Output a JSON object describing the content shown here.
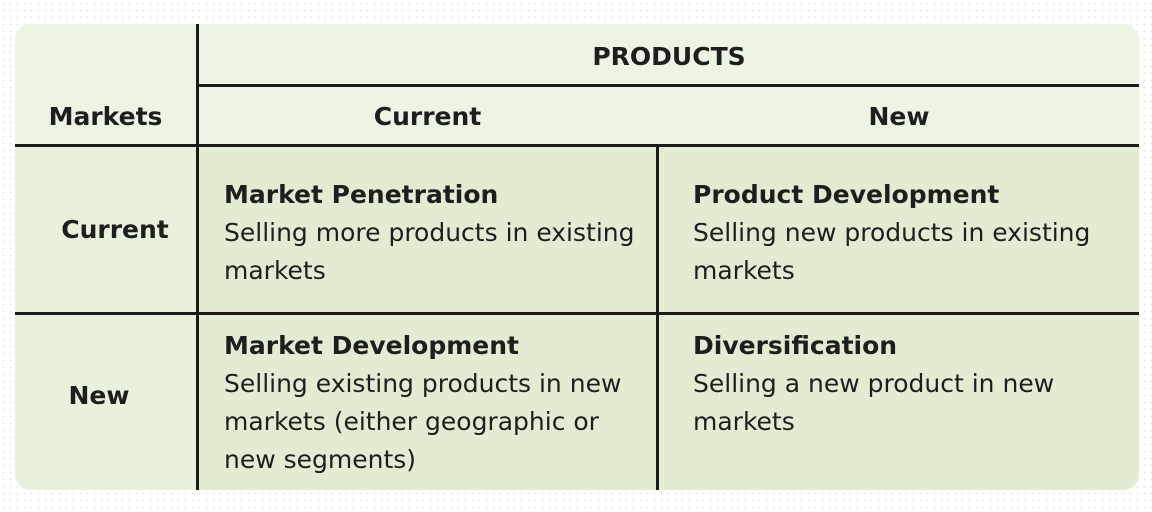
{
  "header": {
    "products_label": "PRODUCTS",
    "markets_label": "Markets",
    "columns": [
      "Current",
      "New"
    ]
  },
  "rows": [
    {
      "label": "Current",
      "cells": [
        {
          "title": "Market Penetration",
          "desc_lines": [
            "Selling more products in existing",
            "markets"
          ]
        },
        {
          "title": "Product Development",
          "desc_lines": [
            "Selling new products in existing",
            "markets"
          ]
        }
      ]
    },
    {
      "label": "New",
      "cells": [
        {
          "title": "Market Development",
          "desc_lines": [
            "Selling existing products in new",
            "markets (either geographic or",
            "new segments)"
          ]
        },
        {
          "title": "Diversification",
          "desc_lines": [
            "Selling a new product in new",
            "markets"
          ]
        }
      ]
    }
  ],
  "colors": {
    "header_bg": "#eef4e3",
    "body_bg": "#e2ecd2",
    "rule": "#1b1b1b"
  }
}
